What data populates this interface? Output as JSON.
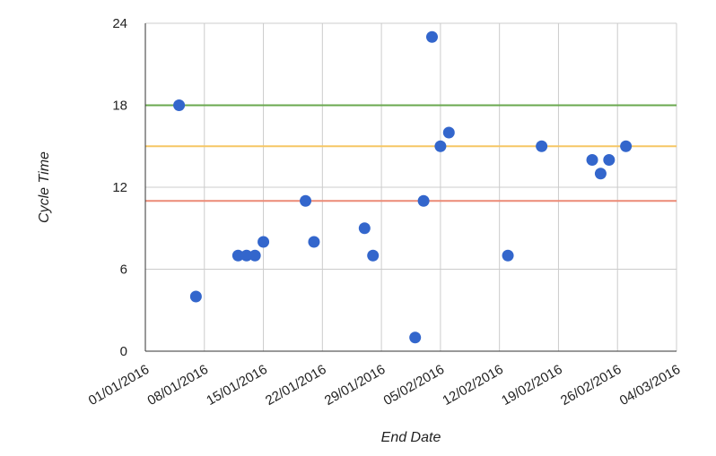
{
  "chart_data": {
    "type": "scatter",
    "title": "",
    "xlabel": "End Date",
    "ylabel": "Cycle Time",
    "x_ticks": [
      "01/01/2016",
      "08/01/2016",
      "15/01/2016",
      "22/01/2016",
      "29/01/2016",
      "05/02/2016",
      "12/02/2016",
      "19/02/2016",
      "26/02/2016",
      "04/03/2016"
    ],
    "xlim": [
      "2016-01-01",
      "2016-03-04"
    ],
    "y_ticks": [
      0,
      6,
      12,
      18,
      24
    ],
    "ylim": [
      0,
      24
    ],
    "grid": true,
    "legend": "none",
    "point_color": "#3366cc",
    "points": [
      {
        "x": "2016-01-05",
        "y": 18
      },
      {
        "x": "2016-01-07",
        "y": 4
      },
      {
        "x": "2016-01-12",
        "y": 7
      },
      {
        "x": "2016-01-13",
        "y": 7
      },
      {
        "x": "2016-01-14",
        "y": 7
      },
      {
        "x": "2016-01-15",
        "y": 8
      },
      {
        "x": "2016-01-20",
        "y": 11
      },
      {
        "x": "2016-01-21",
        "y": 8
      },
      {
        "x": "2016-01-27",
        "y": 9
      },
      {
        "x": "2016-01-28",
        "y": 7
      },
      {
        "x": "2016-02-02",
        "y": 1
      },
      {
        "x": "2016-02-03",
        "y": 11
      },
      {
        "x": "2016-02-04",
        "y": 23
      },
      {
        "x": "2016-02-05",
        "y": 15
      },
      {
        "x": "2016-02-06",
        "y": 16
      },
      {
        "x": "2016-02-13",
        "y": 7
      },
      {
        "x": "2016-02-17",
        "y": 15
      },
      {
        "x": "2016-02-23",
        "y": 14
      },
      {
        "x": "2016-02-24",
        "y": 13
      },
      {
        "x": "2016-02-25",
        "y": 14
      },
      {
        "x": "2016-02-27",
        "y": 15
      }
    ],
    "reference_lines": [
      {
        "y": 18,
        "color": "#6aa84f"
      },
      {
        "y": 15,
        "color": "#f6c765"
      },
      {
        "y": 11,
        "color": "#ec8a76"
      }
    ]
  }
}
